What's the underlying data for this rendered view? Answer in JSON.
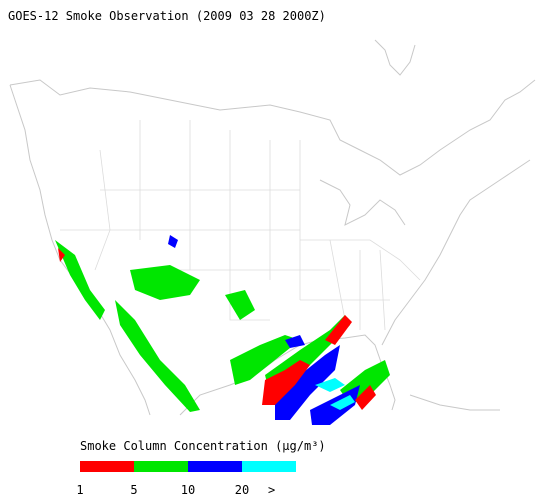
{
  "header": {
    "title": "GOES-12 Smoke Observation (2009 03 28  2000Z)"
  },
  "legend": {
    "title": "Smoke Column Concentration (μg/m³)",
    "colors": [
      "#ff0000",
      "#00e600",
      "#0000ff",
      "#00ffff"
    ],
    "labels": [
      "1",
      "5",
      "10",
      "20",
      ">"
    ]
  }
}
